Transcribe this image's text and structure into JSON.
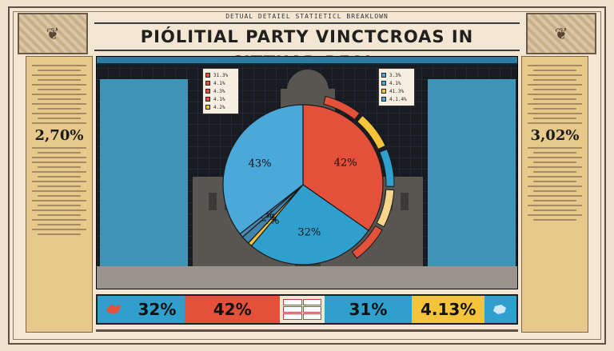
{
  "header": {
    "subtitle": "DETUAL DETAIEL STATIETICL BREAKLOWN",
    "title": "PIÓLITIAL PARTY VINCTCROAS IN CITTUAD REAL."
  },
  "left_panel": {
    "big_value": "2,70%"
  },
  "right_panel": {
    "big_value": "3,02%"
  },
  "chart_data": {
    "type": "pie",
    "slices": [
      {
        "label": "42%",
        "value": 42,
        "color": "#e4503a"
      },
      {
        "label": "32%",
        "value": 32,
        "color": "#2f9fcd"
      },
      {
        "label": "1%",
        "value": 1,
        "color": "#f6c43a"
      },
      {
        "label": "2%",
        "value": 2,
        "color": "#3f84ad"
      },
      {
        "label": "1%",
        "value": 1,
        "color": "#4d89b4"
      },
      {
        "label": "43%",
        "value": 43,
        "color": "#4aa8db"
      }
    ],
    "outer_ring": [
      {
        "color": "#e4503a"
      },
      {
        "color": "#f6c43a"
      },
      {
        "color": "#2f9fcd"
      },
      {
        "color": "#f6d48a"
      },
      {
        "color": "#e4503a"
      }
    ],
    "legend_left": [
      {
        "label": "31.3%",
        "color": "#e4503a"
      },
      {
        "label": "4.1%",
        "color": "#e4503a"
      },
      {
        "label": "4.3%",
        "color": "#e4503a"
      },
      {
        "label": "4.1%",
        "color": "#e4503a"
      },
      {
        "label": "4.2%",
        "color": "#f6c43a"
      }
    ],
    "legend_right": [
      {
        "label": "3.3%",
        "color": "#4aa8db"
      },
      {
        "label": "4.1%",
        "color": "#4aa8db"
      },
      {
        "label": "41.3%",
        "color": "#f6c43a"
      },
      {
        "label": "4.1.4%",
        "color": "#4aa8db"
      }
    ],
    "labels": [
      "42%",
      "43%",
      "42%",
      "32%",
      "1%",
      "2%",
      "1%"
    ]
  },
  "results": {
    "values": [
      "32%",
      "42%",
      "31%",
      "4.13%"
    ],
    "colors": [
      "#2f9fcd",
      "#e4503a",
      "#2f9fcd",
      "#f6c43a"
    ]
  }
}
